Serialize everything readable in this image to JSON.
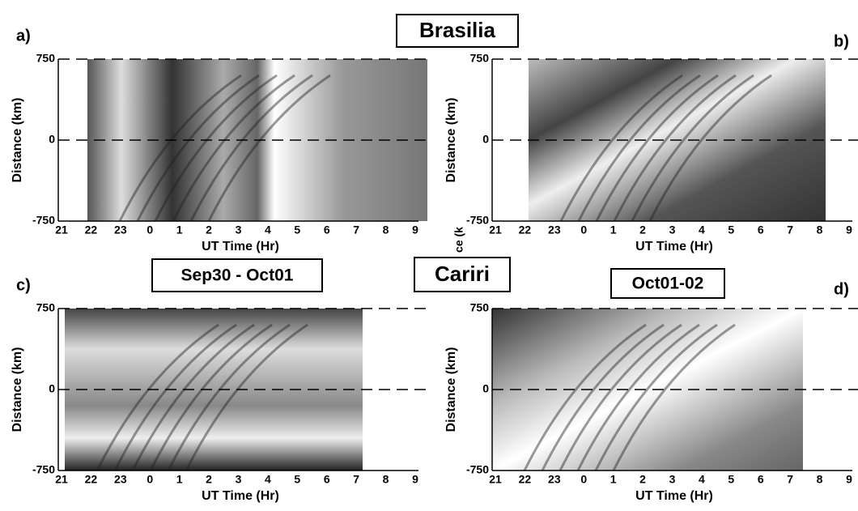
{
  "headers": {
    "top": "Brasilia",
    "bottom": "Cariri"
  },
  "x_ticks": [
    "21",
    "22",
    "23",
    "0",
    "1",
    "2",
    "3",
    "4",
    "5",
    "6",
    "7",
    "8",
    "9"
  ],
  "y_ticks": [
    "750",
    "0",
    "-750"
  ],
  "y_label": "Distance (km)",
  "x_label": "UT Time (Hr)",
  "stray_label": "ce (k",
  "panels": [
    {
      "letter": "a)"
    },
    {
      "letter": "b)"
    },
    {
      "letter": "c)",
      "date": "Sep30 - Oct01"
    },
    {
      "letter": "d)",
      "date": "Oct01-02"
    }
  ]
}
